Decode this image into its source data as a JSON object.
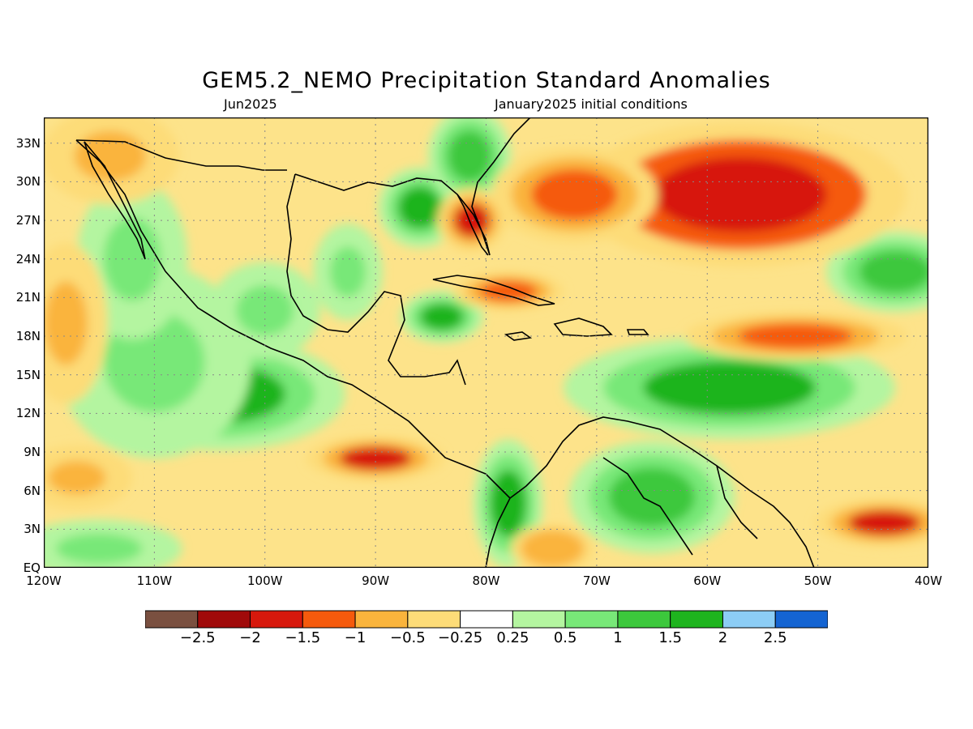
{
  "header": {
    "title": "GEM5.2_NEMO Precipitation Standard Anomalies",
    "valid_month": "Jun2025",
    "init": "January2025 initial conditions"
  },
  "axes": {
    "lat_labels": [
      "33N",
      "30N",
      "27N",
      "24N",
      "21N",
      "18N",
      "15N",
      "12N",
      "9N",
      "6N",
      "3N",
      "EQ"
    ],
    "lat_values": [
      33,
      30,
      27,
      24,
      21,
      18,
      15,
      12,
      9,
      6,
      3,
      0
    ],
    "lon_labels": [
      "120W",
      "110W",
      "100W",
      "90W",
      "80W",
      "70W",
      "60W",
      "50W",
      "40W"
    ],
    "lon_values": [
      -120,
      -110,
      -100,
      -90,
      -80,
      -70,
      -60,
      -50,
      -40
    ],
    "lon_range": [
      -120,
      -40
    ],
    "lat_range": [
      0,
      35
    ]
  },
  "colorbar": {
    "colors": [
      "#7a5040",
      "#a00a0a",
      "#d7180c",
      "#f55a0c",
      "#fab43c",
      "#fddc78",
      "#ffffff",
      "#b4f5a0",
      "#78e878",
      "#3cc83c",
      "#1eb41e",
      "#8ccdf5",
      "#1464d2"
    ],
    "labels": [
      "−2.5",
      "−2",
      "−1.5",
      "−1",
      "−0.5",
      "−0.25",
      "0.25",
      "0.5",
      "1",
      "1.5",
      "2",
      "2.5"
    ]
  },
  "anomaly_regions": [
    {
      "lon": -104,
      "lat": 13.5,
      "value": 1.6,
      "rx": 9,
      "ry": 3.5
    },
    {
      "lon": -110,
      "lat": 16,
      "value": 0.8,
      "rx": 7,
      "ry": 6
    },
    {
      "lon": -100,
      "lat": 20,
      "value": 0.6,
      "rx": 4,
      "ry": 3
    },
    {
      "lon": -92.5,
      "lat": 23,
      "value": 0.9,
      "rx": 2.5,
      "ry": 3
    },
    {
      "lon": -86,
      "lat": 28,
      "value": 1.6,
      "rx": 3,
      "ry": 2.5
    },
    {
      "lon": -81.5,
      "lat": 32,
      "value": 1.2,
      "rx": 3,
      "ry": 3
    },
    {
      "lon": -84,
      "lat": 19.5,
      "value": 1.5,
      "rx": 3,
      "ry": 1.6
    },
    {
      "lon": -58,
      "lat": 14,
      "value": 1.6,
      "rx": 12,
      "ry": 3.2
    },
    {
      "lon": -43,
      "lat": 23,
      "value": 1.0,
      "rx": 5,
      "ry": 2.5
    },
    {
      "lon": -65,
      "lat": 5.5,
      "value": 1.3,
      "rx": 6,
      "ry": 3.5
    },
    {
      "lon": -78,
      "lat": 5,
      "value": 1.6,
      "rx": 2.5,
      "ry": 4
    },
    {
      "lon": -115,
      "lat": 1.5,
      "value": 0.5,
      "rx": 6,
      "ry": 1.8
    },
    {
      "lon": -112,
      "lat": 24,
      "value": 0.6,
      "rx": 4,
      "ry": 5
    },
    {
      "lon": -57,
      "lat": 29,
      "value": -1.9,
      "rx": 12,
      "ry": 4.5
    },
    {
      "lon": -72,
      "lat": 29,
      "value": -1.3,
      "rx": 6,
      "ry": 3
    },
    {
      "lon": -81.3,
      "lat": 27,
      "value": -1.6,
      "rx": 2.5,
      "ry": 2
    },
    {
      "lon": -90,
      "lat": 8.5,
      "value": -1.7,
      "rx": 5,
      "ry": 1.4
    },
    {
      "lon": -52,
      "lat": 18,
      "value": -1.4,
      "rx": 8,
      "ry": 1.5
    },
    {
      "lon": -44,
      "lat": 3.5,
      "value": -1.6,
      "rx": 5,
      "ry": 1.5
    },
    {
      "lon": -78,
      "lat": 21.5,
      "value": -1.1,
      "rx": 4,
      "ry": 1.2
    },
    {
      "lon": -114,
      "lat": 32,
      "value": -0.8,
      "rx": 5,
      "ry": 3
    },
    {
      "lon": -117,
      "lat": 7,
      "value": -0.7,
      "rx": 4,
      "ry": 2
    },
    {
      "lon": -74,
      "lat": 1.5,
      "value": -1.0,
      "rx": 3,
      "ry": 1.5
    },
    {
      "lon": -118,
      "lat": 19,
      "value": -0.6,
      "rx": 3,
      "ry": 5
    }
  ]
}
